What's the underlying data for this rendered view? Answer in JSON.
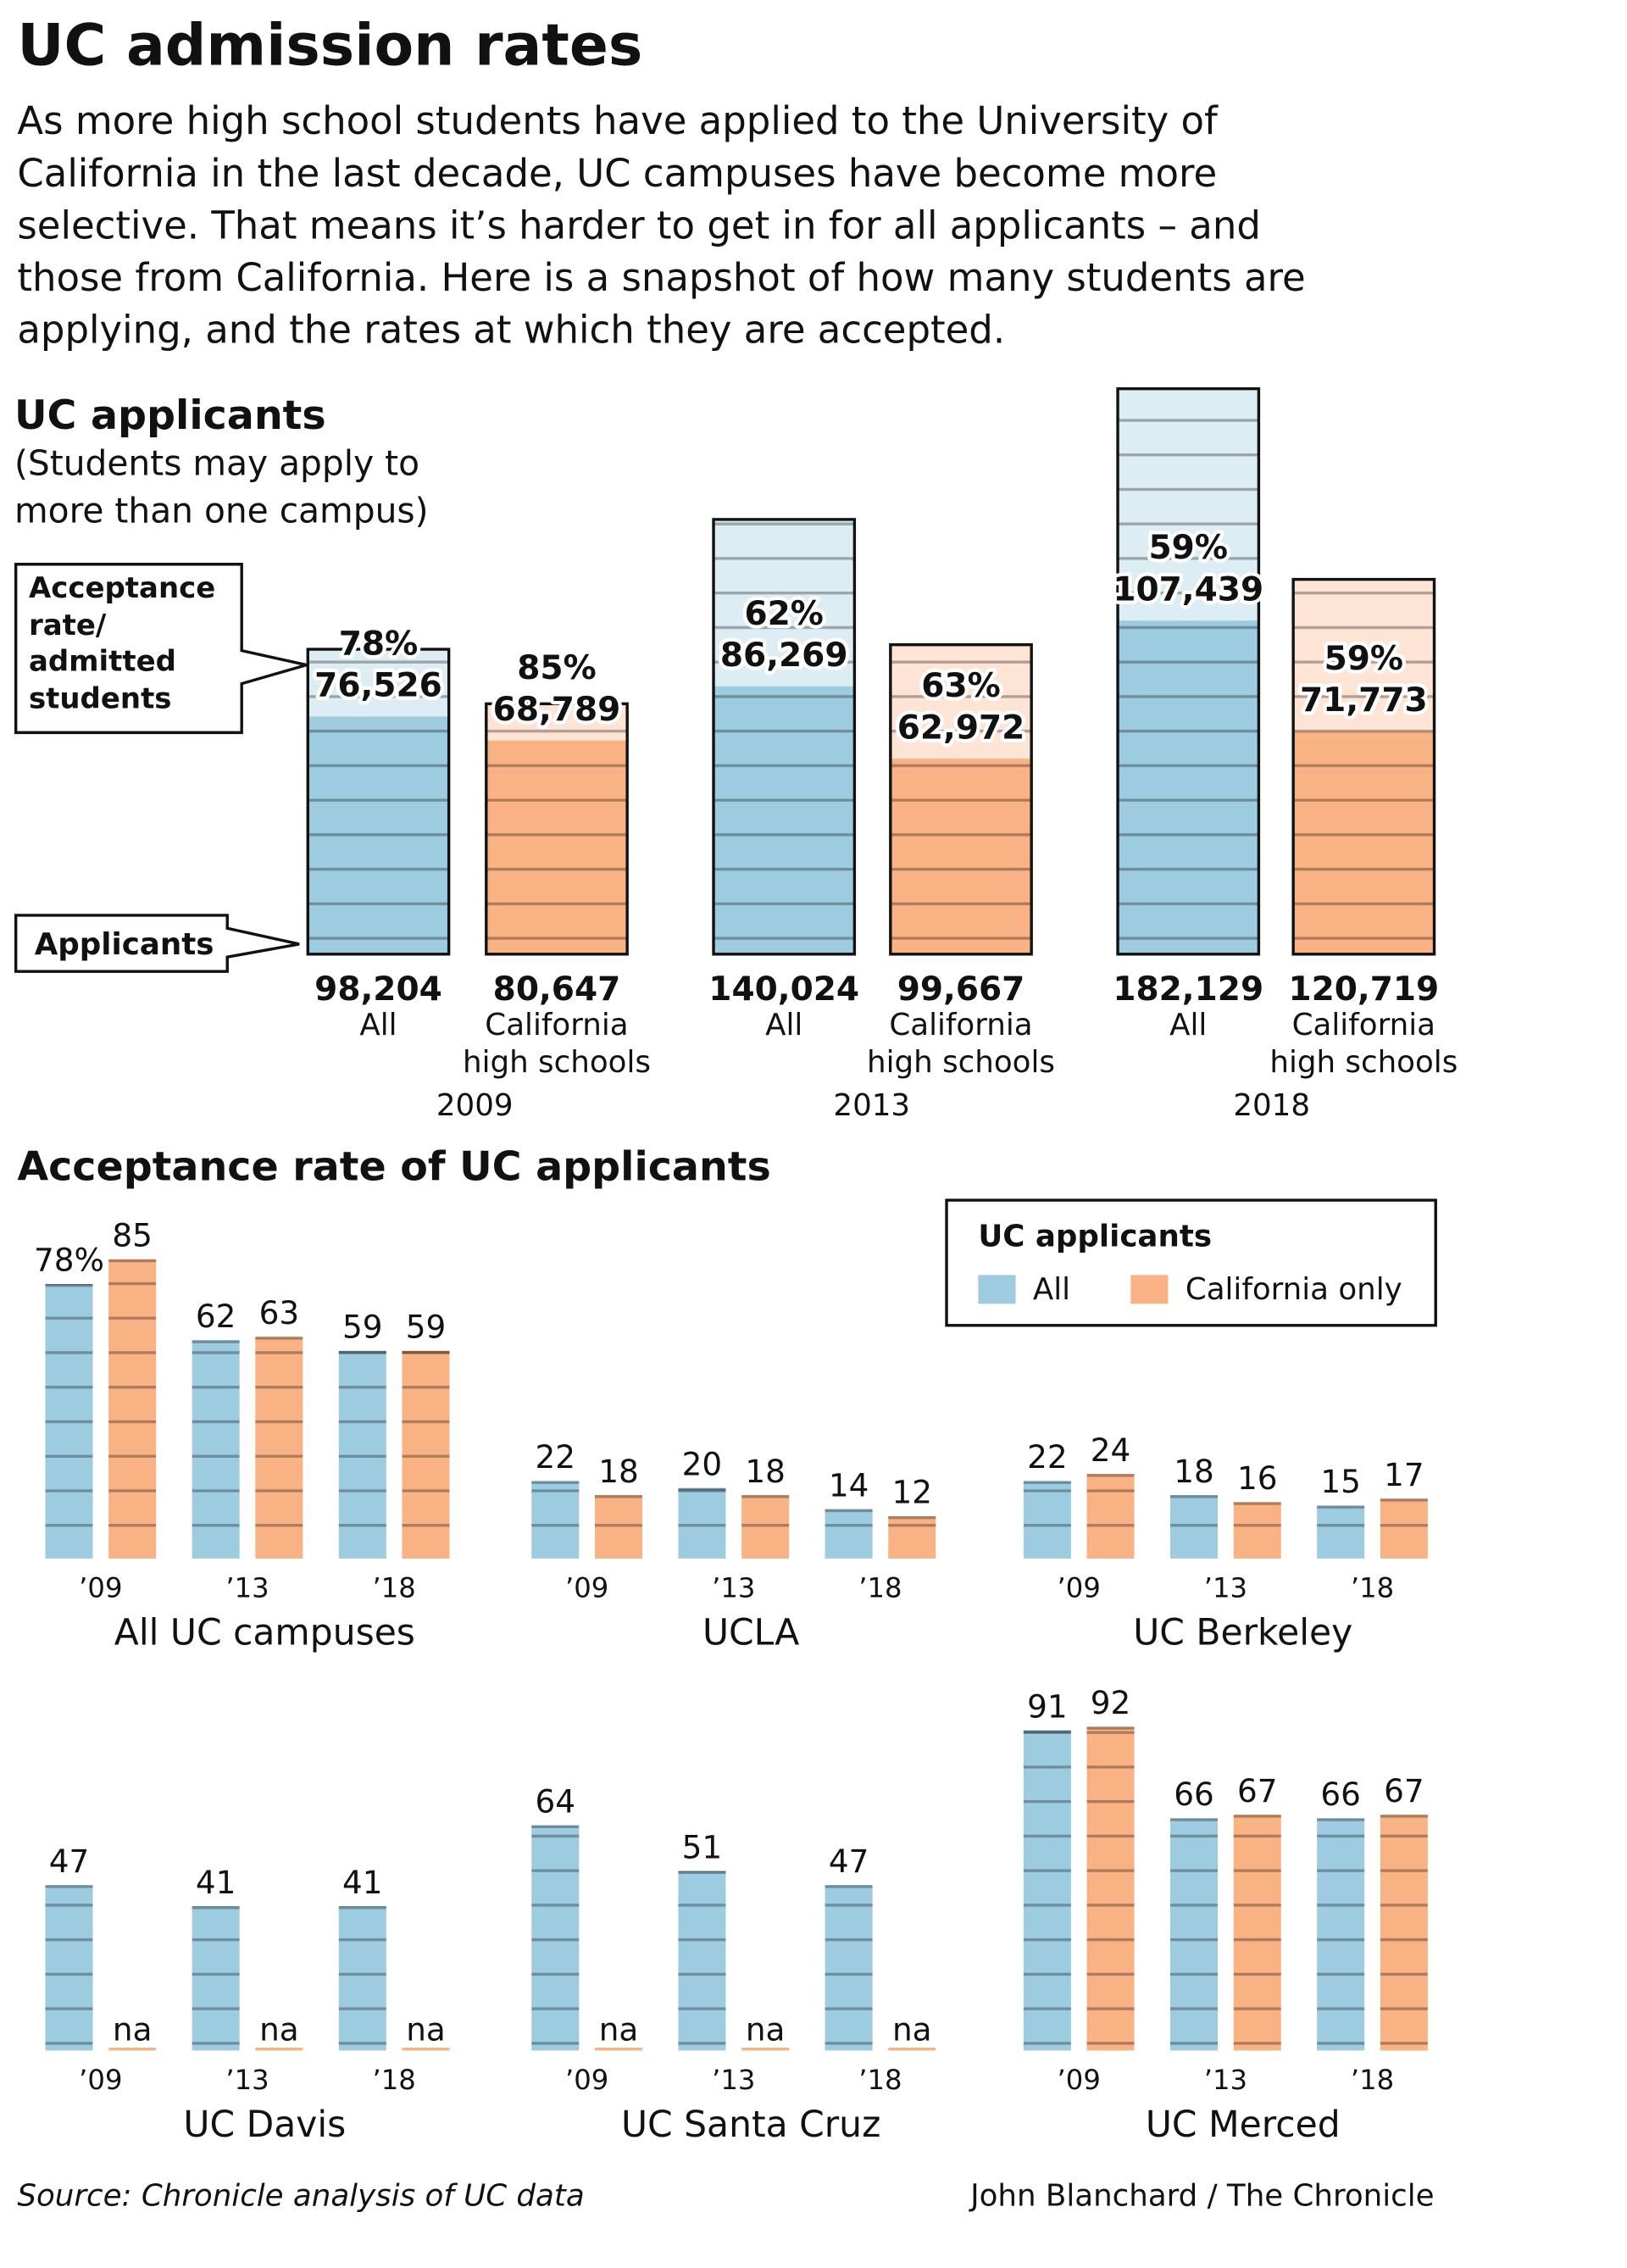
{
  "title": "UC admission rates",
  "description": [
    "As more high school students have applied to the University of",
    "California in the last decade, UC campuses have become more",
    "selective. That means it’s harder to get in for all applicants – and",
    "those from California. Here is a snapshot of how many students are",
    "applying, and the rates at which they are accepted."
  ],
  "chart_data": [
    {
      "type": "applicants",
      "title": "UC applicants",
      "subtitle": [
        "(Students may apply to",
        "more than one campus)"
      ],
      "categories": [
        "All",
        "California high schools",
        "All",
        "California high schools",
        "All",
        "California high schools"
      ],
      "groups": [
        "2009",
        "2013",
        "2018"
      ],
      "colors": [
        "#9dcbe0",
        "#f9b283",
        "#9dcbe0",
        "#f9b283",
        "#9dcbe0",
        "#f9b283"
      ],
      "annotations": [
        "Acceptance rate/ admitted students",
        "Applicants"
      ],
      "series": [
        {
          "values": [
            98204,
            80647,
            140024,
            99667,
            182129,
            120719
          ],
          "value_labels": [
            "98,204",
            "80,647",
            "140,024",
            "99,667",
            "182,129",
            "120,719"
          ]
        },
        {
          "values": [
            76526,
            68789,
            86269,
            62972,
            107439,
            71773
          ],
          "value_labels": [
            "76,526",
            "68,789",
            "86,269",
            "62,972",
            "107,439",
            "71,773"
          ]
        },
        {
          "values": [
            78,
            85,
            62,
            63,
            59,
            59
          ],
          "value_labels": [
            "78%",
            "85%",
            "62%",
            "63%",
            "59%",
            "59%"
          ]
        }
      ]
    },
    {
      "type": "bar",
      "title": "All UC campuses",
      "categories": [
        "’09",
        "’13",
        "’18"
      ],
      "series": [
        {
          "color": "#9dcbe0",
          "values": [
            78,
            62,
            59
          ],
          "value_labels": [
            "78%",
            "62",
            "59"
          ]
        },
        {
          "color": "#f9b283",
          "values": [
            85,
            63,
            59
          ]
        }
      ]
    },
    {
      "type": "bar",
      "title": "UCLA",
      "categories": [
        "’09",
        "’13",
        "’18"
      ],
      "series": [
        {
          "color": "#9dcbe0",
          "values": [
            22,
            20,
            14
          ]
        },
        {
          "color": "#f9b283",
          "values": [
            18,
            18,
            12
          ]
        }
      ]
    },
    {
      "type": "bar",
      "title": "UC Berkeley",
      "categories": [
        "’09",
        "’13",
        "’18"
      ],
      "series": [
        {
          "color": "#9dcbe0",
          "values": [
            22,
            18,
            15
          ]
        },
        {
          "color": "#f9b283",
          "values": [
            24,
            16,
            17
          ]
        }
      ]
    },
    {
      "type": "bar",
      "title": "UC Davis",
      "categories": [
        "’09",
        "’13",
        "’18"
      ],
      "series": [
        {
          "color": "#9dcbe0",
          "values": [
            47,
            41,
            41
          ]
        },
        {
          "color": "#f9b283",
          "values": [
            null,
            null,
            null
          ],
          "value_labels": [
            "na",
            "na",
            "na"
          ]
        }
      ]
    },
    {
      "type": "bar",
      "title": "UC Santa Cruz",
      "categories": [
        "’09",
        "’13",
        "’18"
      ],
      "series": [
        {
          "color": "#9dcbe0",
          "values": [
            64,
            51,
            47
          ]
        },
        {
          "color": "#f9b283",
          "values": [
            null,
            null,
            null
          ],
          "value_labels": [
            "na",
            "na",
            "na"
          ]
        }
      ]
    },
    {
      "type": "bar",
      "title": "UC Merced",
      "categories": [
        "’09",
        "’13",
        "’18"
      ],
      "series": [
        {
          "color": "#9dcbe0",
          "values": [
            91,
            66,
            66
          ]
        },
        {
          "color": "#f9b283",
          "values": [
            92,
            67,
            67
          ]
        }
      ]
    }
  ],
  "section_title": "Acceptance rate of UC applicants",
  "legend": {
    "title": "UC applicants",
    "items": [
      {
        "name": "All",
        "color": "#9dcbe0"
      },
      {
        "name": "California only",
        "color": "#f9b283"
      }
    ]
  },
  "source": "Source: Chronicle analysis of UC data",
  "credit": "John Blanchard / The Chronicle"
}
